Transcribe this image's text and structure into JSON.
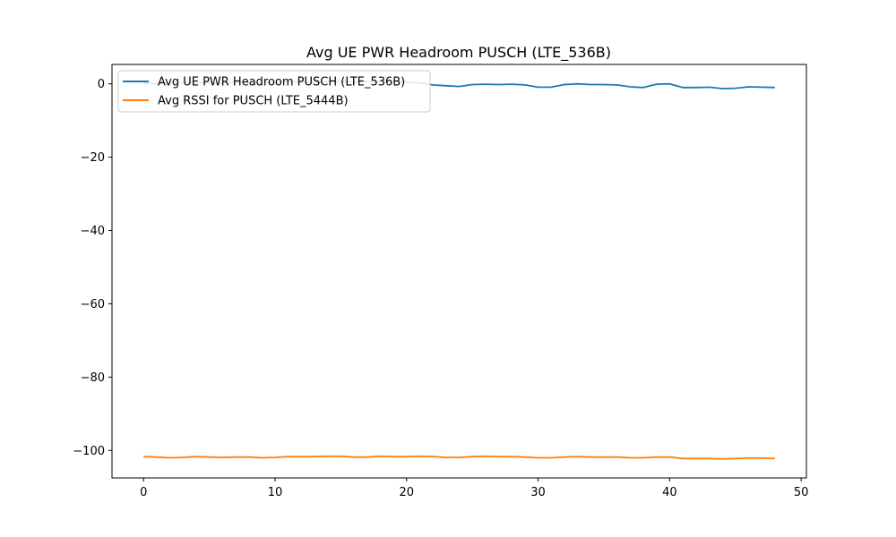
{
  "chart_data": {
    "type": "line",
    "title": "Avg UE PWR Headroom PUSCH (LTE_536B)",
    "xlabel": "",
    "ylabel": "",
    "xlim": [
      -2.4,
      50.4
    ],
    "ylim": [
      -107.5,
      5.3
    ],
    "xticks": [
      0,
      10,
      20,
      30,
      40,
      50
    ],
    "yticks": [
      0,
      -20,
      -40,
      -60,
      -80,
      -100
    ],
    "xtick_labels": [
      "0",
      "10",
      "20",
      "30",
      "40",
      "50"
    ],
    "ytick_labels": [
      "0",
      "−20",
      "−40",
      "−60",
      "−80",
      "−100"
    ],
    "grid": false,
    "legend_position": "upper-left",
    "x": [
      0,
      1,
      2,
      3,
      4,
      5,
      6,
      7,
      8,
      9,
      10,
      11,
      12,
      13,
      14,
      15,
      16,
      17,
      18,
      19,
      20,
      21,
      22,
      23,
      24,
      25,
      26,
      27,
      28,
      29,
      30,
      31,
      32,
      33,
      34,
      35,
      36,
      37,
      38,
      39,
      40,
      41,
      42,
      43,
      44,
      45,
      46,
      47,
      48
    ],
    "series": [
      {
        "name": "Avg UE PWR Headroom PUSCH (LTE_536B)",
        "color": "#1f77b4",
        "values": [
          0.2,
          0.0,
          0.3,
          0.4,
          0.3,
          0.3,
          0.2,
          0.4,
          0.3,
          0.2,
          0.5,
          0.6,
          0.5,
          0.4,
          0.6,
          0.7,
          0.5,
          0.6,
          0.6,
          0.7,
          0.5,
          0.3,
          -0.3,
          -0.5,
          -0.7,
          -0.2,
          -0.1,
          -0.2,
          -0.1,
          -0.3,
          -0.9,
          -0.9,
          -0.2,
          0.0,
          -0.2,
          -0.2,
          -0.3,
          -0.8,
          -1.0,
          -0.1,
          0.0,
          -1.0,
          -1.0,
          -0.9,
          -1.3,
          -1.2,
          -0.8,
          -0.9,
          -1.0
        ]
      },
      {
        "name": "Avg RSSI for PUSCH (LTE_5444B)",
        "color": "#ff7f0e",
        "values": [
          -101.7,
          -101.8,
          -102.0,
          -101.9,
          -101.7,
          -101.8,
          -101.9,
          -101.8,
          -101.8,
          -102.0,
          -101.9,
          -101.7,
          -101.7,
          -101.7,
          -101.6,
          -101.6,
          -101.8,
          -101.8,
          -101.6,
          -101.7,
          -101.7,
          -101.6,
          -101.7,
          -101.9,
          -101.9,
          -101.7,
          -101.6,
          -101.7,
          -101.7,
          -101.8,
          -102.0,
          -102.0,
          -101.8,
          -101.7,
          -101.8,
          -101.8,
          -101.8,
          -102.0,
          -102.0,
          -101.8,
          -101.8,
          -102.2,
          -102.2,
          -102.2,
          -102.3,
          -102.2,
          -102.1,
          -102.1,
          -102.2
        ]
      }
    ]
  }
}
